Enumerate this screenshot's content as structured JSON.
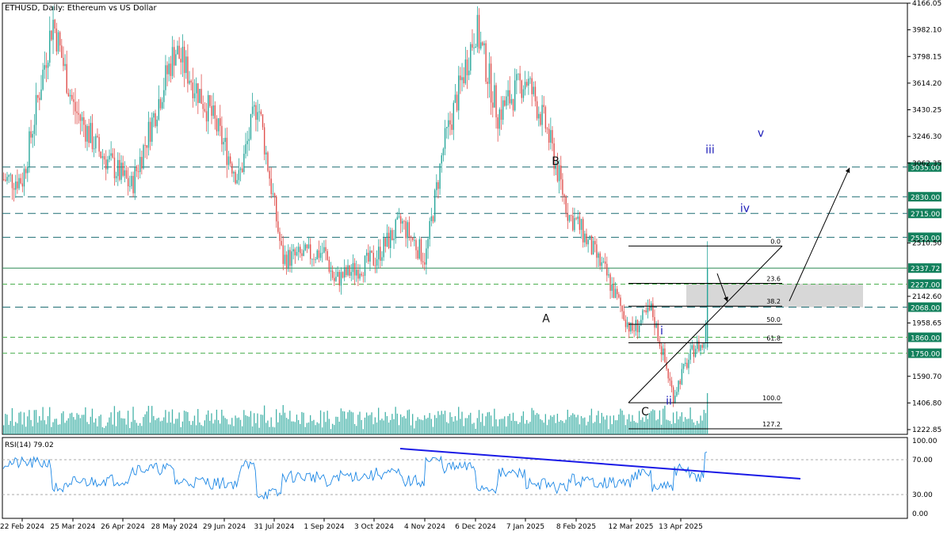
{
  "header": {
    "title": "ETHUSD, Daily:  Ethereum vs US Dollar"
  },
  "colors": {
    "bull": "#26a69a",
    "bear": "#e0524f",
    "volume": "#26a69a",
    "hline_dashed": "#1e6e73",
    "support_green": "#4caf50",
    "price_label_bg": "#12805c",
    "current_price_bg": "#12805c",
    "rsi_line": "#1e88e5",
    "rsi_trend": "#1a1ae6",
    "fib_line": "#000000",
    "zone_fill": "#d3d3d3",
    "wave_blue": "#1a1ab8"
  },
  "chart_data": {
    "type": "candlestick",
    "title": "ETHUSD, Daily:  Ethereum vs US Dollar",
    "ylim": [
      1222.85,
      4166.05
    ],
    "y_ticks": [
      "4166.05",
      "3982.10",
      "3798.15",
      "3614.20",
      "3430.25",
      "3246.30",
      "3062.35",
      "2510.50",
      "2142.60",
      "1958.65",
      "1590.70",
      "1406.80",
      "1222.85"
    ],
    "x_ticks": [
      "22 Feb 2024",
      "25 Mar 2024",
      "26 Apr 2024",
      "28 May 2024",
      "29 Jun 2024",
      "31 Jul 2024",
      "1 Sep 2024",
      "3 Oct 2024",
      "4 Nov 2024",
      "6 Dec 2024",
      "7 Jan 2025",
      "8 Feb 2025",
      "12 Mar 2025",
      "13 Apr 2025"
    ],
    "price_path": [
      [
        "22 Feb 2024",
        2950
      ],
      [
        "12 Mar 2024",
        4050
      ],
      [
        "25 Mar 2024",
        3450
      ],
      [
        "10 Apr 2024",
        3150
      ],
      [
        "1 May 2024",
        2900
      ],
      [
        "28 May 2024",
        3850
      ],
      [
        "20 Jun 2024",
        3400
      ],
      [
        "8 Jul 2024",
        2950
      ],
      [
        "20 Jul 2024",
        3500
      ],
      [
        "5 Aug 2024",
        2400
      ],
      [
        "1 Sep 2024",
        2450
      ],
      [
        "7 Sep 2024",
        2250
      ],
      [
        "3 Oct 2024",
        2400
      ],
      [
        "20 Oct 2024",
        2650
      ],
      [
        "4 Nov 2024",
        2400
      ],
      [
        "15 Nov 2024",
        3150
      ],
      [
        "6 Dec 2024",
        4000
      ],
      [
        "20 Dec 2024",
        3400
      ],
      [
        "7 Jan 2025",
        3650
      ],
      [
        "20 Jan 2025",
        3300
      ],
      [
        "3 Feb 2025",
        2700
      ],
      [
        "8 Feb 2025",
        2650
      ],
      [
        "25 Feb 2025",
        2300
      ],
      [
        "12 Mar 2025",
        1900
      ],
      [
        "25 Mar 2025",
        2050
      ],
      [
        "8 Apr 2025",
        1450
      ],
      [
        "13 Apr 2025",
        1600
      ],
      [
        "22 Apr 2025",
        1800
      ],
      [
        "28 Apr 2025",
        1800
      ],
      [
        "30 Apr 2025",
        2337.72
      ]
    ],
    "horizontal_levels": [
      {
        "label": "3035.00",
        "value": 3035,
        "style": "dashed"
      },
      {
        "label": "2830.00",
        "value": 2830,
        "style": "dashed"
      },
      {
        "label": "2715.00",
        "value": 2715,
        "style": "dashed"
      },
      {
        "label": "2550.00",
        "value": 2550,
        "style": "dashed"
      },
      {
        "label": "2337.72",
        "value": 2337.72,
        "style": "solid"
      },
      {
        "label": "2227.00",
        "value": 2227,
        "style": "green-dashed"
      },
      {
        "label": "2068.00",
        "value": 2068,
        "style": "dashed"
      },
      {
        "label": "1860.00",
        "value": 1860,
        "style": "green-dashed"
      },
      {
        "label": "1750.00",
        "value": 1750,
        "style": "green-dashed"
      }
    ],
    "fibonacci": [
      {
        "label": "0.0",
        "value": 2490
      },
      {
        "label": "23.6",
        "value": 2232
      },
      {
        "label": "38.2",
        "value": 2075
      },
      {
        "label": "50.0",
        "value": 1950
      },
      {
        "label": "61.8",
        "value": 1822
      },
      {
        "label": "100.0",
        "value": 1408
      },
      {
        "label": "127.2",
        "value": 1117
      }
    ],
    "wave_labels": [
      {
        "text": "B",
        "group": "black"
      },
      {
        "text": "A",
        "group": "black"
      },
      {
        "text": "C",
        "group": "black"
      },
      {
        "text": "i",
        "group": "blue"
      },
      {
        "text": "ii",
        "group": "blue"
      },
      {
        "text": "iii",
        "group": "blue"
      },
      {
        "text": "iv",
        "group": "blue"
      },
      {
        "text": "v",
        "group": "blue"
      }
    ],
    "rsi": {
      "label": "RSI(14) 79.02",
      "ylim": [
        0,
        100
      ],
      "ticks": [
        "100.00",
        "70.00",
        "30.00",
        "0.00"
      ],
      "value": 79.02
    }
  }
}
